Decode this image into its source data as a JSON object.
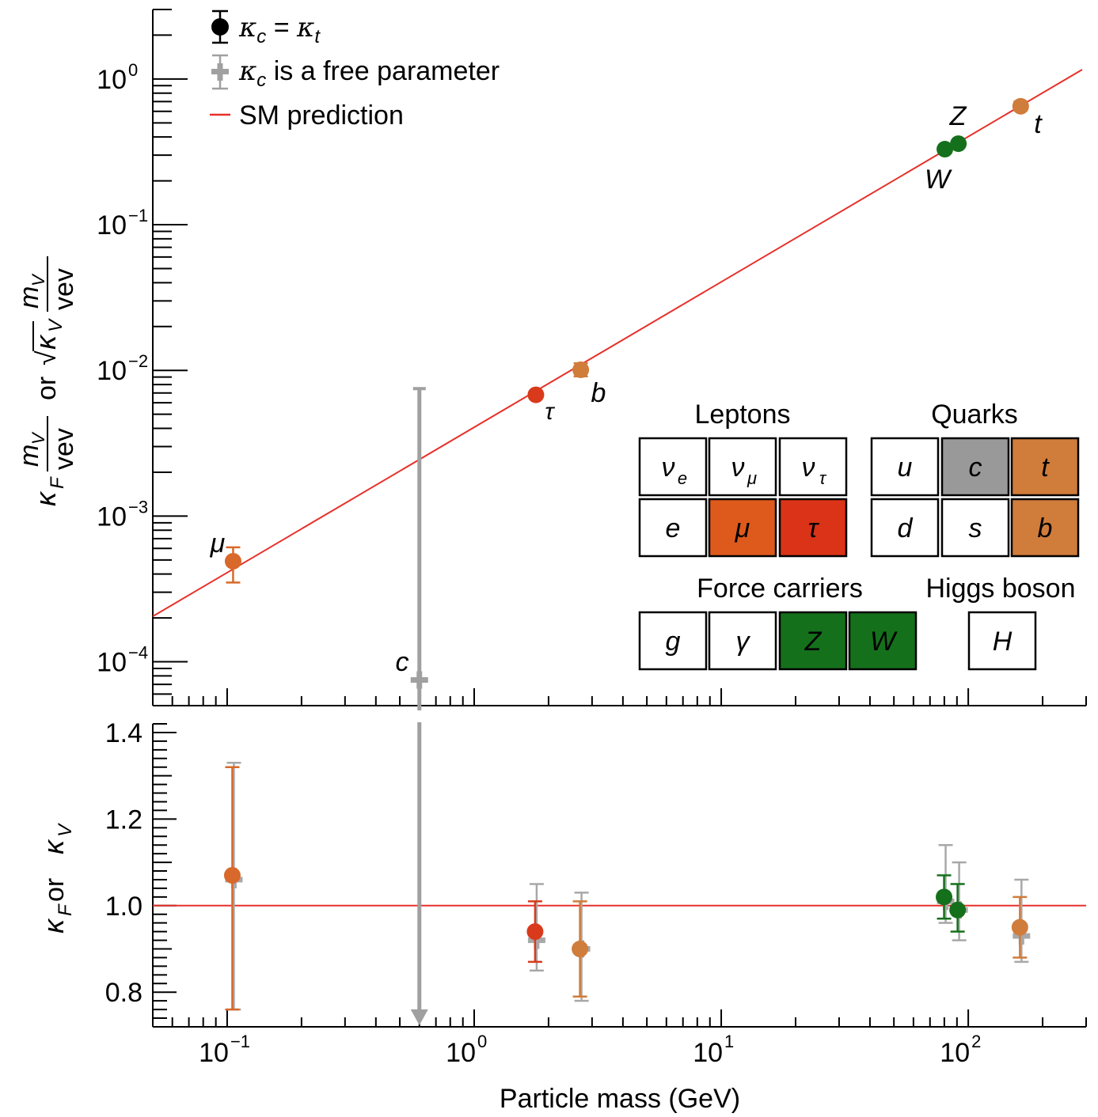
{
  "chart_data": [
    {
      "panel": "top",
      "type": "scatter",
      "x_scale": "log",
      "y_scale": "log",
      "xlim": [
        0.05,
        300
      ],
      "ylim": [
        5e-05,
        3
      ],
      "ylabel_parts": [
        "κ",
        "F",
        "m",
        "V",
        "vev",
        "or",
        "√",
        "κ",
        "V",
        "m",
        "V",
        "vev"
      ],
      "y_ticks": [
        {
          "value": 0.0001,
          "base": "10",
          "exp": "−4"
        },
        {
          "value": 0.001,
          "base": "10",
          "exp": "−3"
        },
        {
          "value": 0.01,
          "base": "10",
          "exp": "−2"
        },
        {
          "value": 0.1,
          "base": "10",
          "exp": "−1"
        },
        {
          "value": 1,
          "base": "10",
          "exp": "0"
        }
      ],
      "legend": [
        {
          "label": "κ",
          "sub": "c",
          "rest": " = κ",
          "sub2": "t",
          "color": "#000000",
          "marker": "circle"
        },
        {
          "label": "κ",
          "sub": "c",
          "rest": " is a free parameter",
          "color": "#999999",
          "marker": "plus"
        },
        {
          "label": "SM prediction",
          "color": "#e8302a",
          "marker": "line"
        }
      ],
      "sm_line": {
        "color": "#e8302a",
        "x": [
          0.05,
          300
        ],
        "y": [
          0.000205,
          1.22
        ]
      },
      "points": [
        {
          "name": "μ",
          "x": 0.1057,
          "y": 0.00049,
          "ylo": 0.00035,
          "yhi": 0.00061,
          "color": "#d8692a"
        },
        {
          "name": "τ",
          "x": 1.777,
          "y": 0.0068,
          "ylo": 0.0065,
          "yhi": 0.0072,
          "color": "#d93a1b"
        },
        {
          "name": "b",
          "x": 2.7,
          "y": 0.0101,
          "ylo": 0.0091,
          "yhi": 0.0112,
          "color": "#d07c3b"
        },
        {
          "name": "W",
          "x": 80.4,
          "y": 0.33,
          "ylo": 0.32,
          "yhi": 0.34,
          "color": "#15701c"
        },
        {
          "name": "Z",
          "x": 91.2,
          "y": 0.36,
          "ylo": 0.35,
          "yhi": 0.37,
          "color": "#15701c"
        },
        {
          "name": "t",
          "x": 163,
          "y": 0.65,
          "ylo": 0.61,
          "yhi": 0.7,
          "color": "#d07c3b"
        }
      ],
      "free_points": [
        {
          "name": "c",
          "x": 0.6,
          "y": 7.5e-05,
          "yhi": 0.0075,
          "color": "#a0a0a0"
        }
      ],
      "labels": {
        "mu": "μ",
        "tau": "τ",
        "b": "b",
        "W": "W",
        "Z": "Z",
        "t": "t",
        "c": "c"
      }
    },
    {
      "panel": "bottom",
      "type": "scatter",
      "x_scale": "log",
      "xlim": [
        0.05,
        300
      ],
      "ylim": [
        0.72,
        1.42
      ],
      "ylabel_parts": [
        "κ",
        "F",
        " or κ",
        "V"
      ],
      "xlabel": "Particle mass (GeV)",
      "y_ticks": [
        "0.8",
        "1.0",
        "1.2",
        "1.4"
      ],
      "x_ticks": [
        {
          "value": 0.1,
          "base": "10",
          "exp": "−1"
        },
        {
          "value": 1,
          "base": "10",
          "exp": "0"
        },
        {
          "value": 10,
          "base": "10",
          "exp": "1"
        },
        {
          "value": 100,
          "base": "10",
          "exp": "2"
        }
      ],
      "sm_value": 1.0,
      "points": [
        {
          "name": "μ",
          "x": 0.1057,
          "y": 1.07,
          "ylo": 0.76,
          "yhi": 1.32,
          "color": "#d8692a"
        },
        {
          "name": "τ",
          "x": 1.777,
          "y": 0.94,
          "ylo": 0.87,
          "yhi": 1.01,
          "color": "#d93a1b"
        },
        {
          "name": "b",
          "x": 2.7,
          "y": 0.9,
          "ylo": 0.79,
          "yhi": 1.01,
          "color": "#d07c3b"
        },
        {
          "name": "W",
          "x": 80.4,
          "y": 1.02,
          "ylo": 0.97,
          "yhi": 1.07,
          "color": "#15701c"
        },
        {
          "name": "Z",
          "x": 91.2,
          "y": 0.99,
          "ylo": 0.94,
          "yhi": 1.05,
          "color": "#15701c"
        },
        {
          "name": "t",
          "x": 163,
          "y": 0.95,
          "ylo": 0.88,
          "yhi": 1.02,
          "color": "#d07c3b"
        }
      ],
      "free_points": [
        {
          "name": "μ",
          "x": 0.1057,
          "y": 1.06,
          "ylo": 0.76,
          "yhi": 1.33
        },
        {
          "name": "τ",
          "x": 1.777,
          "y": 0.92,
          "ylo": 0.85,
          "yhi": 1.05
        },
        {
          "name": "b",
          "x": 2.7,
          "y": 0.9,
          "ylo": 0.78,
          "yhi": 1.03
        },
        {
          "name": "W",
          "x": 80.4,
          "y": 1.01,
          "ylo": 0.96,
          "yhi": 1.14
        },
        {
          "name": "Z",
          "x": 91.2,
          "y": 0.99,
          "ylo": 0.92,
          "yhi": 1.1
        },
        {
          "name": "t",
          "x": 163,
          "y": 0.93,
          "ylo": 0.87,
          "yhi": 1.06
        },
        {
          "name": "c",
          "x": 0.6,
          "y": 0.73,
          "yhi": 1.42
        }
      ]
    }
  ],
  "particle_table": {
    "groups": {
      "leptons": "Leptons",
      "quarks": "Quarks",
      "force": "Force carriers",
      "higgs": "Higgs boson"
    },
    "cells": [
      {
        "id": "nu_e",
        "glyph": "ν",
        "sub": "e",
        "color": "#ffffff",
        "text_color": "#000000"
      },
      {
        "id": "nu_mu",
        "glyph": "ν",
        "sub": "μ",
        "color": "#ffffff",
        "text_color": "#000000"
      },
      {
        "id": "nu_tau",
        "glyph": "ν",
        "sub": "τ",
        "color": "#ffffff",
        "text_color": "#000000"
      },
      {
        "id": "u",
        "glyph": "u",
        "color": "#ffffff",
        "text_color": "#000000"
      },
      {
        "id": "c",
        "glyph": "c",
        "color": "#999999",
        "text_color": "#ffffff"
      },
      {
        "id": "t",
        "glyph": "t",
        "color": "#d07c3b",
        "text_color": "#ffffff"
      },
      {
        "id": "e",
        "glyph": "e",
        "color": "#ffffff",
        "text_color": "#000000"
      },
      {
        "id": "mu",
        "glyph": "μ",
        "color": "#dd5a1c",
        "text_color": "#ffffff"
      },
      {
        "id": "tau",
        "glyph": "τ",
        "color": "#da3317",
        "text_color": "#ffffff"
      },
      {
        "id": "d",
        "glyph": "d",
        "color": "#ffffff",
        "text_color": "#000000"
      },
      {
        "id": "s",
        "glyph": "s",
        "color": "#ffffff",
        "text_color": "#000000"
      },
      {
        "id": "b",
        "glyph": "b",
        "color": "#d07c3b",
        "text_color": "#ffffff"
      },
      {
        "id": "g",
        "glyph": "g",
        "color": "#ffffff",
        "text_color": "#000000"
      },
      {
        "id": "gamma",
        "glyph": "γ",
        "color": "#ffffff",
        "text_color": "#000000"
      },
      {
        "id": "Z",
        "glyph": "Z",
        "color": "#15701c",
        "text_color": "#ffffff"
      },
      {
        "id": "W",
        "glyph": "W",
        "color": "#15701c",
        "text_color": "#ffffff"
      },
      {
        "id": "H",
        "glyph": "H",
        "color": "#ffffff",
        "text_color": "#000000"
      }
    ]
  }
}
